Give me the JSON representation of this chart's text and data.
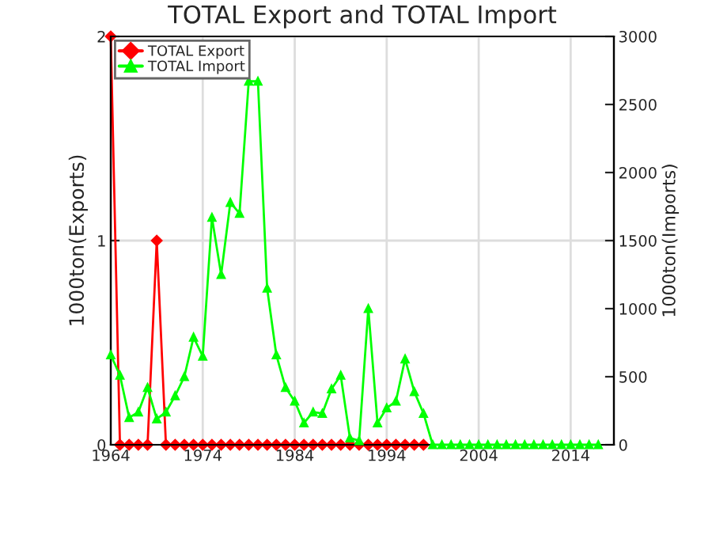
{
  "chart_data": {
    "type": "line",
    "title": "TOTAL Export and TOTAL Import",
    "ylabel": "1000ton(Exports)",
    "y2label": "1000ton(Imports)",
    "x": [
      1964,
      1965,
      1966,
      1967,
      1968,
      1969,
      1970,
      1971,
      1972,
      1973,
      1974,
      1975,
      1976,
      1977,
      1978,
      1979,
      1980,
      1981,
      1982,
      1983,
      1984,
      1985,
      1986,
      1987,
      1988,
      1989,
      1990,
      1991,
      1992,
      1993,
      1994,
      1995,
      1996,
      1997,
      1998,
      1999,
      2000,
      2001,
      2002,
      2003,
      2004,
      2005,
      2006,
      2007,
      2008,
      2009,
      2010,
      2011,
      2012,
      2013,
      2014,
      2015,
      2016,
      2017
    ],
    "series": [
      {
        "name": "TOTAL Export",
        "color": "#ff0000",
        "marker": "diamond",
        "values": [
          2,
          0,
          0,
          0,
          0,
          1,
          0,
          0,
          0,
          0,
          0,
          0,
          0,
          0,
          0,
          0,
          0,
          0,
          0,
          0,
          0,
          0,
          0,
          0,
          0,
          0,
          0,
          0,
          0,
          0,
          0,
          0,
          0,
          0,
          0,
          null,
          null,
          null,
          null,
          null,
          null,
          null,
          null,
          null,
          null,
          null,
          null,
          null,
          null,
          null,
          null,
          null,
          null,
          null
        ]
      },
      {
        "name": "TOTAL Import",
        "color": "#00ff00",
        "marker": "triangle",
        "axis": "y2",
        "values": [
          660,
          510,
          200,
          240,
          420,
          190,
          240,
          360,
          500,
          790,
          650,
          1670,
          1250,
          1780,
          1700,
          2670,
          2670,
          1150,
          660,
          420,
          320,
          160,
          240,
          230,
          410,
          510,
          50,
          30,
          1000,
          160,
          270,
          320,
          630,
          390,
          230,
          0,
          0,
          0,
          0,
          0,
          0,
          0,
          0,
          0,
          0,
          0,
          0,
          0,
          0,
          0,
          0,
          0,
          0,
          0
        ]
      }
    ],
    "xlim": [
      1964,
      2018.7
    ],
    "xticks": [
      1964,
      1974,
      1984,
      1994,
      2004,
      2014
    ],
    "ylim": [
      0,
      2
    ],
    "yticks": [
      0,
      1,
      2
    ],
    "y2lim": [
      0,
      3000
    ],
    "y2ticks": [
      0,
      500,
      1000,
      1500,
      2000,
      2500,
      3000
    ],
    "grid": true,
    "legend": "top left",
    "line_style": "solid"
  }
}
